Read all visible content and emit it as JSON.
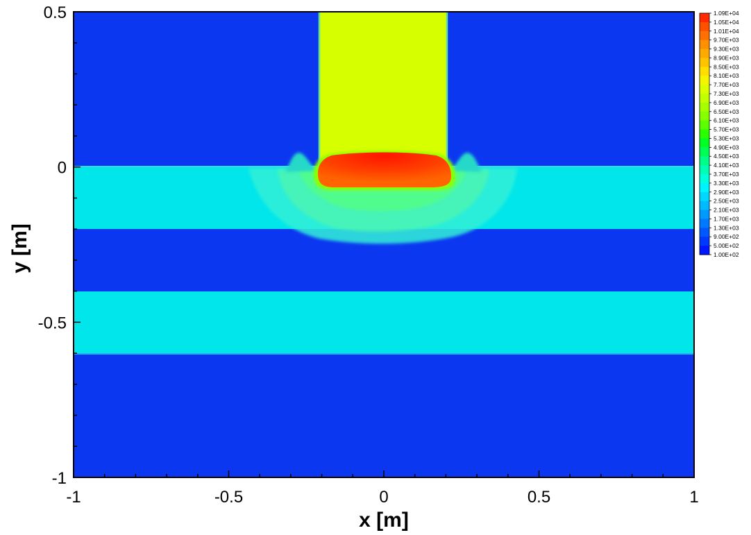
{
  "chart_data": {
    "type": "heatmap",
    "title": "",
    "xlabel": "x [m]",
    "ylabel": "y [m]",
    "xlim": [
      -1,
      1
    ],
    "ylim": [
      -1,
      0.5
    ],
    "xticks": [
      {
        "value": -1,
        "label": "-1"
      },
      {
        "value": -0.5,
        "label": "-0.5"
      },
      {
        "value": 0,
        "label": "0"
      },
      {
        "value": 0.5,
        "label": "0.5"
      },
      {
        "value": 1,
        "label": "1"
      }
    ],
    "yticks": [
      {
        "value": 0.5,
        "label": "0.5"
      },
      {
        "value": 0,
        "label": "0"
      },
      {
        "value": -0.5,
        "label": "-0.5"
      },
      {
        "value": -1,
        "label": "-1"
      }
    ],
    "grid": false,
    "legend_position": "right",
    "colorbar": {
      "min": 100,
      "max": 10900,
      "labels": [
        "1.09E+04",
        "1.05E+04",
        "1.01E+04",
        "9.70E+03",
        "9.30E+03",
        "8.90E+03",
        "8.50E+03",
        "8.10E+03",
        "7.70E+03",
        "7.30E+03",
        "6.90E+03",
        "6.50E+03",
        "6.10E+03",
        "5.70E+03",
        "5.30E+03",
        "4.90E+03",
        "4.50E+03",
        "4.10E+03",
        "3.70E+03",
        "3.30E+03",
        "2.90E+03",
        "2.50E+03",
        "2.10E+03",
        "1.70E+03",
        "1.30E+03",
        "9.00E+02",
        "5.00E+02",
        "1.00E+02"
      ],
      "colors": [
        "#ff2a00",
        "#ff5000",
        "#ff7000",
        "#ff9000",
        "#ffaa00",
        "#ffc400",
        "#ffde00",
        "#f5f500",
        "#dcff00",
        "#c2ff00",
        "#a6ff00",
        "#86ff00",
        "#5cff00",
        "#2aff00",
        "#00ff22",
        "#00ff55",
        "#00ff88",
        "#00ffb4",
        "#00ffdc",
        "#00f4ff",
        "#00d8ff",
        "#00baff",
        "#009aff",
        "#0078ff",
        "#0058ff",
        "#0038ff",
        "#0018ff"
      ]
    },
    "regions": [
      {
        "name": "background",
        "value": 500,
        "color": "#0c37f0"
      },
      {
        "name": "layer-upper",
        "value": 2750,
        "color": "#00e6ea",
        "x": [
          -1,
          1
        ],
        "y": [
          -0.2,
          0
        ]
      },
      {
        "name": "layer-lower",
        "value": 2750,
        "color": "#00e6ea",
        "x": [
          -1,
          1
        ],
        "y": [
          -0.6,
          -0.4
        ]
      },
      {
        "name": "column",
        "value": 7900,
        "color": "#d6ff00",
        "x": [
          -0.205,
          0.205
        ],
        "y": [
          0,
          0.5
        ]
      },
      {
        "name": "hot-zone",
        "value": 10500,
        "color": "#ff3a0a",
        "x": [
          -0.19,
          0.19
        ],
        "y": [
          -0.07,
          0.05
        ]
      }
    ]
  }
}
